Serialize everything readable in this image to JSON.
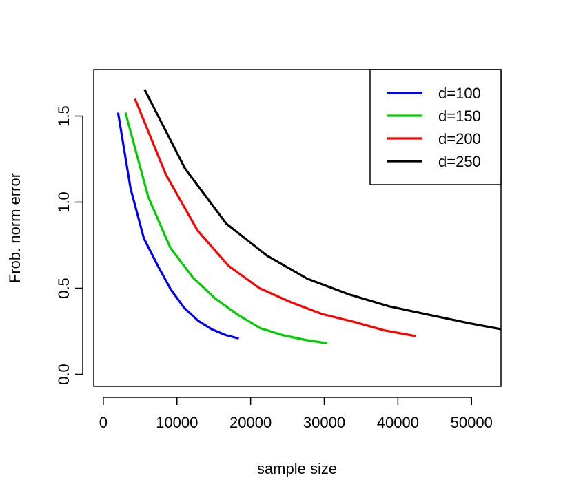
{
  "chart_data": {
    "type": "line",
    "xlabel": "sample size",
    "ylabel": "Frob. norm error",
    "xlim": [
      -1300,
      54000
    ],
    "ylim": [
      -0.07,
      1.77
    ],
    "x_ticks": [
      0,
      10000,
      20000,
      30000,
      40000,
      50000
    ],
    "x_tick_labels": [
      "0",
      "10000",
      "20000",
      "30000",
      "40000",
      "50000"
    ],
    "y_ticks": [
      0.0,
      0.5,
      1.0,
      1.5
    ],
    "y_tick_labels": [
      "0.0",
      "0.5",
      "1.0",
      "1.5"
    ],
    "grid": false,
    "legend_position": "top-right",
    "series": [
      {
        "name": "d=100",
        "color": "#0000ff",
        "x": [
          2000,
          3700,
          5500,
          7400,
          9200,
          11000,
          12900,
          14700,
          16600,
          18400
        ],
        "y": [
          1.52,
          1.08,
          0.79,
          0.63,
          0.49,
          0.385,
          0.31,
          0.262,
          0.228,
          0.208
        ]
      },
      {
        "name": "d=150",
        "color": "#00cd00",
        "x": [
          3000,
          6100,
          9100,
          12200,
          15200,
          18300,
          21300,
          24300,
          27400,
          30400
        ],
        "y": [
          1.52,
          1.03,
          0.735,
          0.56,
          0.44,
          0.345,
          0.268,
          0.228,
          0.2,
          0.18
        ]
      },
      {
        "name": "d=200",
        "color": "#ff0000",
        "x": [
          4300,
          8500,
          12800,
          17000,
          21200,
          25400,
          29700,
          34000,
          38200,
          42400
        ],
        "y": [
          1.6,
          1.16,
          0.835,
          0.63,
          0.5,
          0.42,
          0.35,
          0.305,
          0.255,
          0.222
        ]
      },
      {
        "name": "d=250",
        "color": "#000000",
        "x": [
          5600,
          11100,
          16700,
          22200,
          27700,
          33300,
          38800,
          44300,
          49900,
          54000
        ],
        "y": [
          1.655,
          1.195,
          0.875,
          0.69,
          0.555,
          0.465,
          0.395,
          0.345,
          0.295,
          0.262
        ]
      }
    ]
  }
}
